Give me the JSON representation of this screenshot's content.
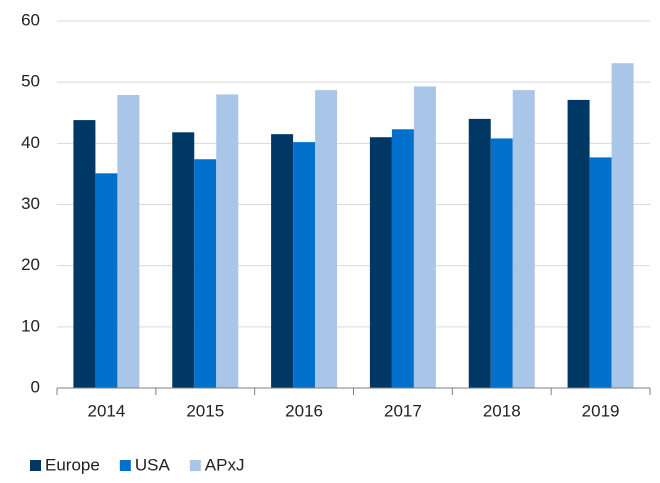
{
  "chart_data": {
    "type": "bar",
    "categories": [
      "2014",
      "2015",
      "2016",
      "2017",
      "2018",
      "2019"
    ],
    "series": [
      {
        "name": "Europe",
        "color": "#003865",
        "values": [
          43.8,
          41.8,
          41.5,
          41.0,
          44.0,
          47.1
        ]
      },
      {
        "name": "USA",
        "color": "#0070cd",
        "values": [
          35.1,
          37.4,
          40.2,
          42.3,
          40.8,
          37.7
        ]
      },
      {
        "name": "APxJ",
        "color": "#a9c6e8",
        "values": [
          47.9,
          48.0,
          48.7,
          49.3,
          48.7,
          53.1
        ]
      }
    ],
    "ylim": [
      0,
      60
    ],
    "yticks": [
      0,
      10,
      20,
      30,
      40,
      50,
      60
    ],
    "grid": true,
    "legend": "bottom"
  }
}
